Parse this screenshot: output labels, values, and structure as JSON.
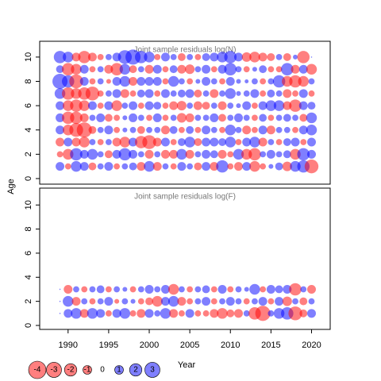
{
  "chart_data": [
    {
      "type": "bubble",
      "title": "Joint sample residuals log(N)",
      "y_label": "Age",
      "x": [
        1989,
        1990,
        1991,
        1992,
        1993,
        1994,
        1995,
        1996,
        1997,
        1998,
        1999,
        2000,
        2001,
        2002,
        2003,
        2004,
        2005,
        2006,
        2007,
        2008,
        2009,
        2010,
        2011,
        2012,
        2013,
        2014,
        2015,
        2016,
        2017,
        2018,
        2019,
        2020
      ],
      "ages": [
        1,
        2,
        3,
        4,
        5,
        6,
        7,
        8,
        9,
        10
      ],
      "values": [
        [
          1,
          -0.5,
          1.5,
          1,
          -0.8,
          0.5,
          1,
          -0.5,
          0.5,
          0.8,
          -1,
          1.5,
          -1,
          0.5,
          -0.5,
          1,
          0.5,
          -0.8,
          1,
          -1,
          2,
          -0.5,
          -1,
          1,
          -1.5,
          -0.5,
          0.3,
          0.8,
          -1.2,
          1.5,
          2,
          -2.5
        ],
        [
          -0.5,
          -1.5,
          2,
          1,
          1.5,
          0.5,
          -0.8,
          1,
          2,
          1,
          0.5,
          -1,
          0.5,
          -1,
          -1,
          1.5,
          -1,
          0.5,
          1,
          0.8,
          -1,
          -0.5,
          1.5,
          -1.5,
          -2,
          0.5,
          1,
          0.5,
          0.8,
          -1.5,
          2,
          1
        ],
        [
          -1,
          1,
          -1,
          -1.5,
          0.5,
          -0.5,
          0.5,
          -1,
          -1.5,
          1,
          -2,
          -2.5,
          -1,
          1,
          -0.5,
          0.8,
          1.5,
          -0.8,
          1,
          1,
          0.8,
          1.5,
          -0.5,
          1,
          1.5,
          -1,
          0.5,
          -0.5,
          0.8,
          1,
          -0.5,
          1
        ],
        [
          1,
          -1.5,
          -2.5,
          -3,
          -0.8,
          0.5,
          1,
          -0.5,
          0.3,
          0.5,
          -0.8,
          0.5,
          0.5,
          -1,
          0.8,
          -0.5,
          0.8,
          -0.5,
          1,
          0.5,
          -0.5,
          1.5,
          0.5,
          -1,
          -0.5,
          1,
          -1,
          0.5,
          0.5,
          -0.5,
          1,
          1.5
        ],
        [
          1,
          -2,
          -2,
          -1,
          0.5,
          1,
          -0.8,
          -0.5,
          0.3,
          1,
          0.5,
          -0.5,
          1,
          -0.5,
          0.5,
          -1.2,
          -1,
          0.5,
          0.5,
          1,
          -0.8,
          0.5,
          1,
          0.5,
          -0.5,
          0.8,
          -0.5,
          0.5,
          0.8,
          0.5,
          -0.8,
          1.5
        ],
        [
          1,
          -1.5,
          -2,
          -1.5,
          1,
          -0.5,
          1,
          -1.5,
          0.5,
          1,
          -0.5,
          1,
          0.8,
          -0.5,
          -1,
          -1.2,
          0.5,
          -1,
          -0.8,
          0.5,
          -1,
          0.5,
          0.3,
          1,
          -0.5,
          1,
          1.5,
          1.5,
          -1,
          -2,
          1,
          0.8
        ],
        [
          1.5,
          -2,
          -1.5,
          -2,
          -2.5,
          -0.5,
          0.5,
          1,
          -1,
          -0.5,
          0.8,
          1,
          -0.5,
          1,
          0.5,
          0.8,
          1,
          -0.8,
          0.5,
          -1,
          0.5,
          1.5,
          0.3,
          0.5,
          1,
          -0.5,
          0.8,
          0.5,
          -1,
          -0.5,
          1,
          -0.5
        ],
        [
          3,
          2,
          -2.5,
          1,
          -0.5,
          0.5,
          -0.3,
          1,
          1.5,
          -1,
          1,
          1,
          1,
          -0.5,
          1.5,
          0.5,
          -0.5,
          0.3,
          1,
          0.5,
          -0.5,
          1,
          0.3,
          0.2,
          0.5,
          -0.5,
          0.5,
          2,
          -1.5,
          -2,
          -1.5,
          0.5
        ],
        [
          0.8,
          -2,
          -1.5,
          1,
          -0.5,
          0.5,
          -1,
          -2,
          1.5,
          -0.8,
          0.5,
          -1,
          1,
          -0.5,
          0.8,
          -1,
          -1.2,
          0.5,
          1,
          -0.5,
          1,
          2,
          0.5,
          -0.5,
          0.3,
          0.8,
          -0.5,
          -0.5,
          2,
          -1,
          1,
          -1.5
        ],
        [
          2,
          1.5,
          -1,
          -2,
          -1,
          -0.5,
          0.5,
          1,
          2.5,
          3,
          2,
          1.5,
          -0.5,
          1,
          0.5,
          -0.8,
          0.5,
          -0.5,
          0.8,
          1,
          1.5,
          2,
          1,
          -1.2,
          -1.5,
          -1,
          -0.8,
          0.5,
          -0.8,
          0.3,
          -2,
          0
        ]
      ],
      "xlim": [
        1986.5,
        2022.3
      ],
      "ylim": [
        -0.46,
        11.3
      ],
      "yticks": [
        0,
        2,
        4,
        6,
        8,
        10
      ]
    },
    {
      "type": "bubble",
      "title": "Joint sample residuals log(F)",
      "x": [
        1989,
        1990,
        1991,
        1992,
        1993,
        1994,
        1995,
        1996,
        1997,
        1998,
        1999,
        2000,
        2001,
        2002,
        2003,
        2004,
        2005,
        2006,
        2007,
        2008,
        2009,
        2010,
        2011,
        2012,
        2013,
        2014,
        2015,
        2016,
        2017,
        2018,
        2019,
        2020
      ],
      "ages": [
        1,
        2,
        3
      ],
      "values": [
        [
          0,
          1,
          1.5,
          -1,
          1.5,
          1,
          -0.5,
          1,
          1.5,
          -0.5,
          -1,
          1,
          0.5,
          1.5,
          -1,
          -0.5,
          1,
          -0.5,
          -0.5,
          -1,
          -1.5,
          -0.8,
          -1,
          0.5,
          -2,
          -3,
          0.5,
          1.5,
          2,
          -2.5,
          -0.8,
          1
        ],
        [
          0,
          1.5,
          -1,
          0.5,
          -0.5,
          0.5,
          1,
          -0.3,
          0.5,
          0.3,
          -0.5,
          -0.8,
          -1.5,
          1,
          1.5,
          -1,
          -0.5,
          0.5,
          1,
          -0.5,
          0.5,
          1,
          0.5,
          -0.5,
          0.5,
          1,
          -0.5,
          1,
          -1.2,
          0.5,
          -0.8,
          0.5
        ],
        [
          0,
          -1,
          0.5,
          -0.5,
          0.5,
          0.8,
          -0.5,
          0.5,
          0.3,
          -0.5,
          0.5,
          1,
          0.5,
          1,
          -1.5,
          0.5,
          -0.5,
          0.5,
          0.8,
          -0.5,
          1,
          -0.5,
          0.5,
          0.3,
          1.5,
          -0.5,
          1,
          0.8,
          1,
          -2,
          0.5,
          -1
        ]
      ],
      "xlim": [
        1986.5,
        2022.3
      ],
      "ylim": [
        -0.33,
        11.4
      ],
      "yticks": [
        0,
        2,
        4,
        6,
        8,
        10
      ],
      "x_label": "Year",
      "xticks": [
        1990,
        1995,
        2000,
        2005,
        2010,
        2015,
        2020
      ]
    }
  ],
  "legend": {
    "values": [
      -4,
      -3,
      -2,
      -1,
      0,
      1,
      2,
      3
    ],
    "negative_color": "#ff0000",
    "positive_color": "#0000ff"
  }
}
